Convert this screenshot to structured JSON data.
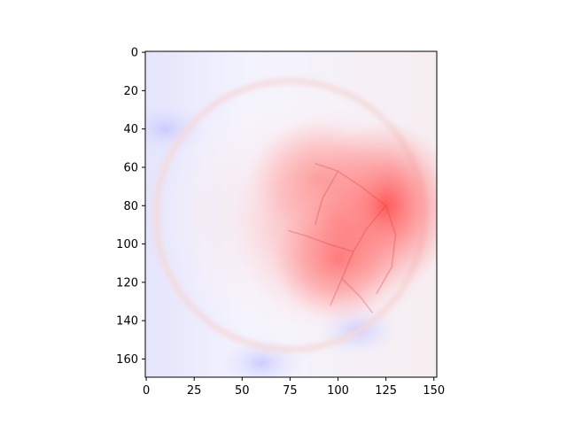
{
  "chart_data": {
    "type": "heatmap",
    "title": "",
    "xlabel": "",
    "ylabel": "",
    "colormap": "bwr",
    "colors": {
      "low": "#0000ff",
      "mid": "#ffffff",
      "high": "#ff0000"
    },
    "image_width": 152,
    "image_height": 170,
    "xlim": [
      -0.5,
      151.5
    ],
    "ylim": [
      169.5,
      -0.5
    ],
    "xticks": [
      0,
      25,
      50,
      75,
      100,
      125,
      150
    ],
    "xtick_labels": [
      "0",
      "25",
      "50",
      "75",
      "100",
      "125",
      "150"
    ],
    "yticks": [
      0,
      20,
      40,
      60,
      80,
      100,
      120,
      140,
      160
    ],
    "ytick_labels": [
      "0",
      "20",
      "40",
      "60",
      "80",
      "100",
      "120",
      "140",
      "160"
    ],
    "grid": false,
    "legend": false,
    "features": {
      "fundus_disc": {
        "center": [
          75,
          85
        ],
        "radius": 70
      },
      "hot_spots": [
        {
          "center": [
            125,
            80
          ],
          "intensity": 0.8
        },
        {
          "center": [
            100,
            108
          ],
          "intensity": 0.65
        },
        {
          "center": [
            90,
            65
          ],
          "intensity": 0.45
        }
      ],
      "cool_regions": [
        {
          "center": [
            10,
            40
          ],
          "intensity": -0.18
        },
        {
          "center": [
            110,
            145
          ],
          "intensity": -0.25
        },
        {
          "center": [
            60,
            162
          ],
          "intensity": -0.2
        }
      ]
    }
  }
}
